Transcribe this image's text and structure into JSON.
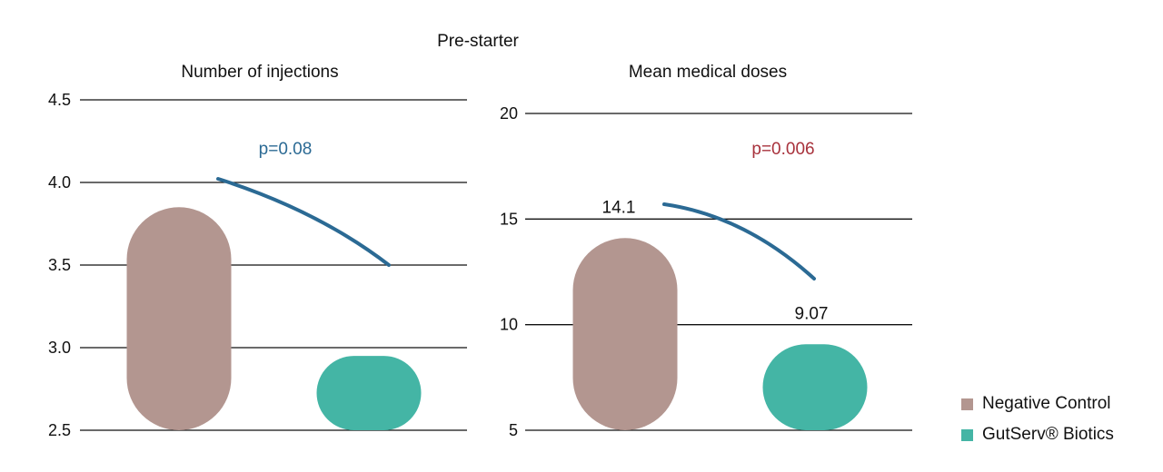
{
  "suptitle": "Pre-starter",
  "colors": {
    "negative_control": "#b39690",
    "gutserv": "#44b5a5",
    "arc": "#2b6a94"
  },
  "legend": [
    {
      "label": "Negative Control",
      "color": "#b39690"
    },
    {
      "label": "GutServ® Biotics",
      "color": "#44b5a5"
    }
  ],
  "chart_data": [
    {
      "type": "bar",
      "title": "Number of injections",
      "categories": [
        "Negative Control",
        "GutServ® Biotics"
      ],
      "series": [
        {
          "values": [
            3.85,
            2.95
          ]
        }
      ],
      "ylim": [
        2.5,
        4.5
      ],
      "yticks": [
        4.5,
        4.0,
        3.5,
        3.0,
        2.5
      ],
      "ytick_labels": [
        "4.5",
        "4.0",
        "3.5",
        "3.0",
        "2.5"
      ],
      "data_labels": [
        "",
        ""
      ],
      "annotation": {
        "text": "p=0.08",
        "color": "#2b6a94"
      },
      "grid": true
    },
    {
      "type": "bar",
      "title": "Mean medical doses",
      "categories": [
        "Negative Control",
        "GutServ® Biotics"
      ],
      "series": [
        {
          "values": [
            14.1,
            9.07
          ]
        }
      ],
      "ylim": [
        5,
        20
      ],
      "yticks": [
        20,
        15,
        10,
        5
      ],
      "ytick_labels": [
        "20",
        "15",
        "10",
        "5"
      ],
      "data_labels": [
        "14.1",
        "9.07"
      ],
      "annotation": {
        "text": "p=0.006",
        "color": "#a8323c"
      },
      "grid": true
    }
  ]
}
